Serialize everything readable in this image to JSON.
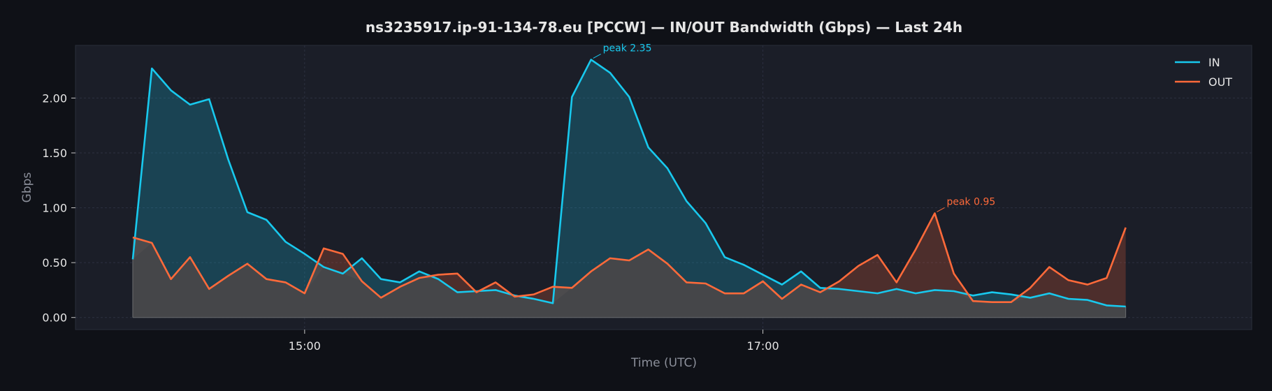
{
  "chart_data": {
    "type": "area",
    "title": "ns3235917.ip-91-134-78.eu [PCCW] — IN/OUT Bandwidth (Gbps) — Last 24h",
    "xlabel": "Time (UTC)",
    "ylabel": "Gbps",
    "x_ticks": [
      {
        "label": "15:00",
        "minutes": 900
      },
      {
        "label": "17:00",
        "minutes": 1020
      }
    ],
    "x_start": "14:15",
    "x_step_minutes": 5,
    "xlim_minutes": [
      840,
      1148
    ],
    "y_ticks": [
      "0.00",
      "0.50",
      "1.00",
      "1.50",
      "2.00"
    ],
    "ylim": [
      -0.11,
      2.48
    ],
    "grid": true,
    "legend_position": "top-right",
    "colors": {
      "background": "#0f1117",
      "plot_background": "#1b1e28",
      "grid": "#2c3040",
      "text": "#e6e6e6",
      "muted_text": "#8b8f9a",
      "in": "#18c9ee",
      "out": "#ff6a3a",
      "overlap_fill": "#454649"
    },
    "series": [
      {
        "name": "IN",
        "color": "#18c9ee",
        "values": [
          0.53,
          2.27,
          2.07,
          1.94,
          1.99,
          1.44,
          0.96,
          0.89,
          0.69,
          0.58,
          0.46,
          0.4,
          0.54,
          0.35,
          0.32,
          0.42,
          0.35,
          0.23,
          0.24,
          0.25,
          0.2,
          0.17,
          0.13,
          2.01,
          2.35,
          2.23,
          2.01,
          1.55,
          1.36,
          1.06,
          0.86,
          0.55,
          0.48,
          0.39,
          0.3,
          0.42,
          0.27,
          0.26,
          0.24,
          0.22,
          0.26,
          0.22,
          0.25,
          0.24,
          0.2,
          0.23,
          0.21,
          0.18,
          0.22,
          0.17,
          0.16,
          0.11,
          0.1
        ]
      },
      {
        "name": "OUT",
        "color": "#ff6a3a",
        "values": [
          0.73,
          0.68,
          0.35,
          0.55,
          0.26,
          0.38,
          0.49,
          0.35,
          0.32,
          0.22,
          0.63,
          0.58,
          0.33,
          0.18,
          0.28,
          0.36,
          0.39,
          0.4,
          0.23,
          0.32,
          0.19,
          0.21,
          0.28,
          0.27,
          0.42,
          0.54,
          0.52,
          0.62,
          0.49,
          0.32,
          0.31,
          0.22,
          0.22,
          0.33,
          0.17,
          0.3,
          0.23,
          0.33,
          0.47,
          0.57,
          0.32,
          0.62,
          0.95,
          0.4,
          0.15,
          0.14,
          0.14,
          0.27,
          0.46,
          0.34,
          0.3,
          0.36,
          0.82
        ]
      }
    ],
    "annotations": [
      {
        "text": "peak 2.35",
        "series": "IN",
        "index": 24,
        "color": "#18c9ee"
      },
      {
        "text": "peak 0.95",
        "series": "OUT",
        "index": 42,
        "color": "#ff6a3a"
      }
    ]
  }
}
